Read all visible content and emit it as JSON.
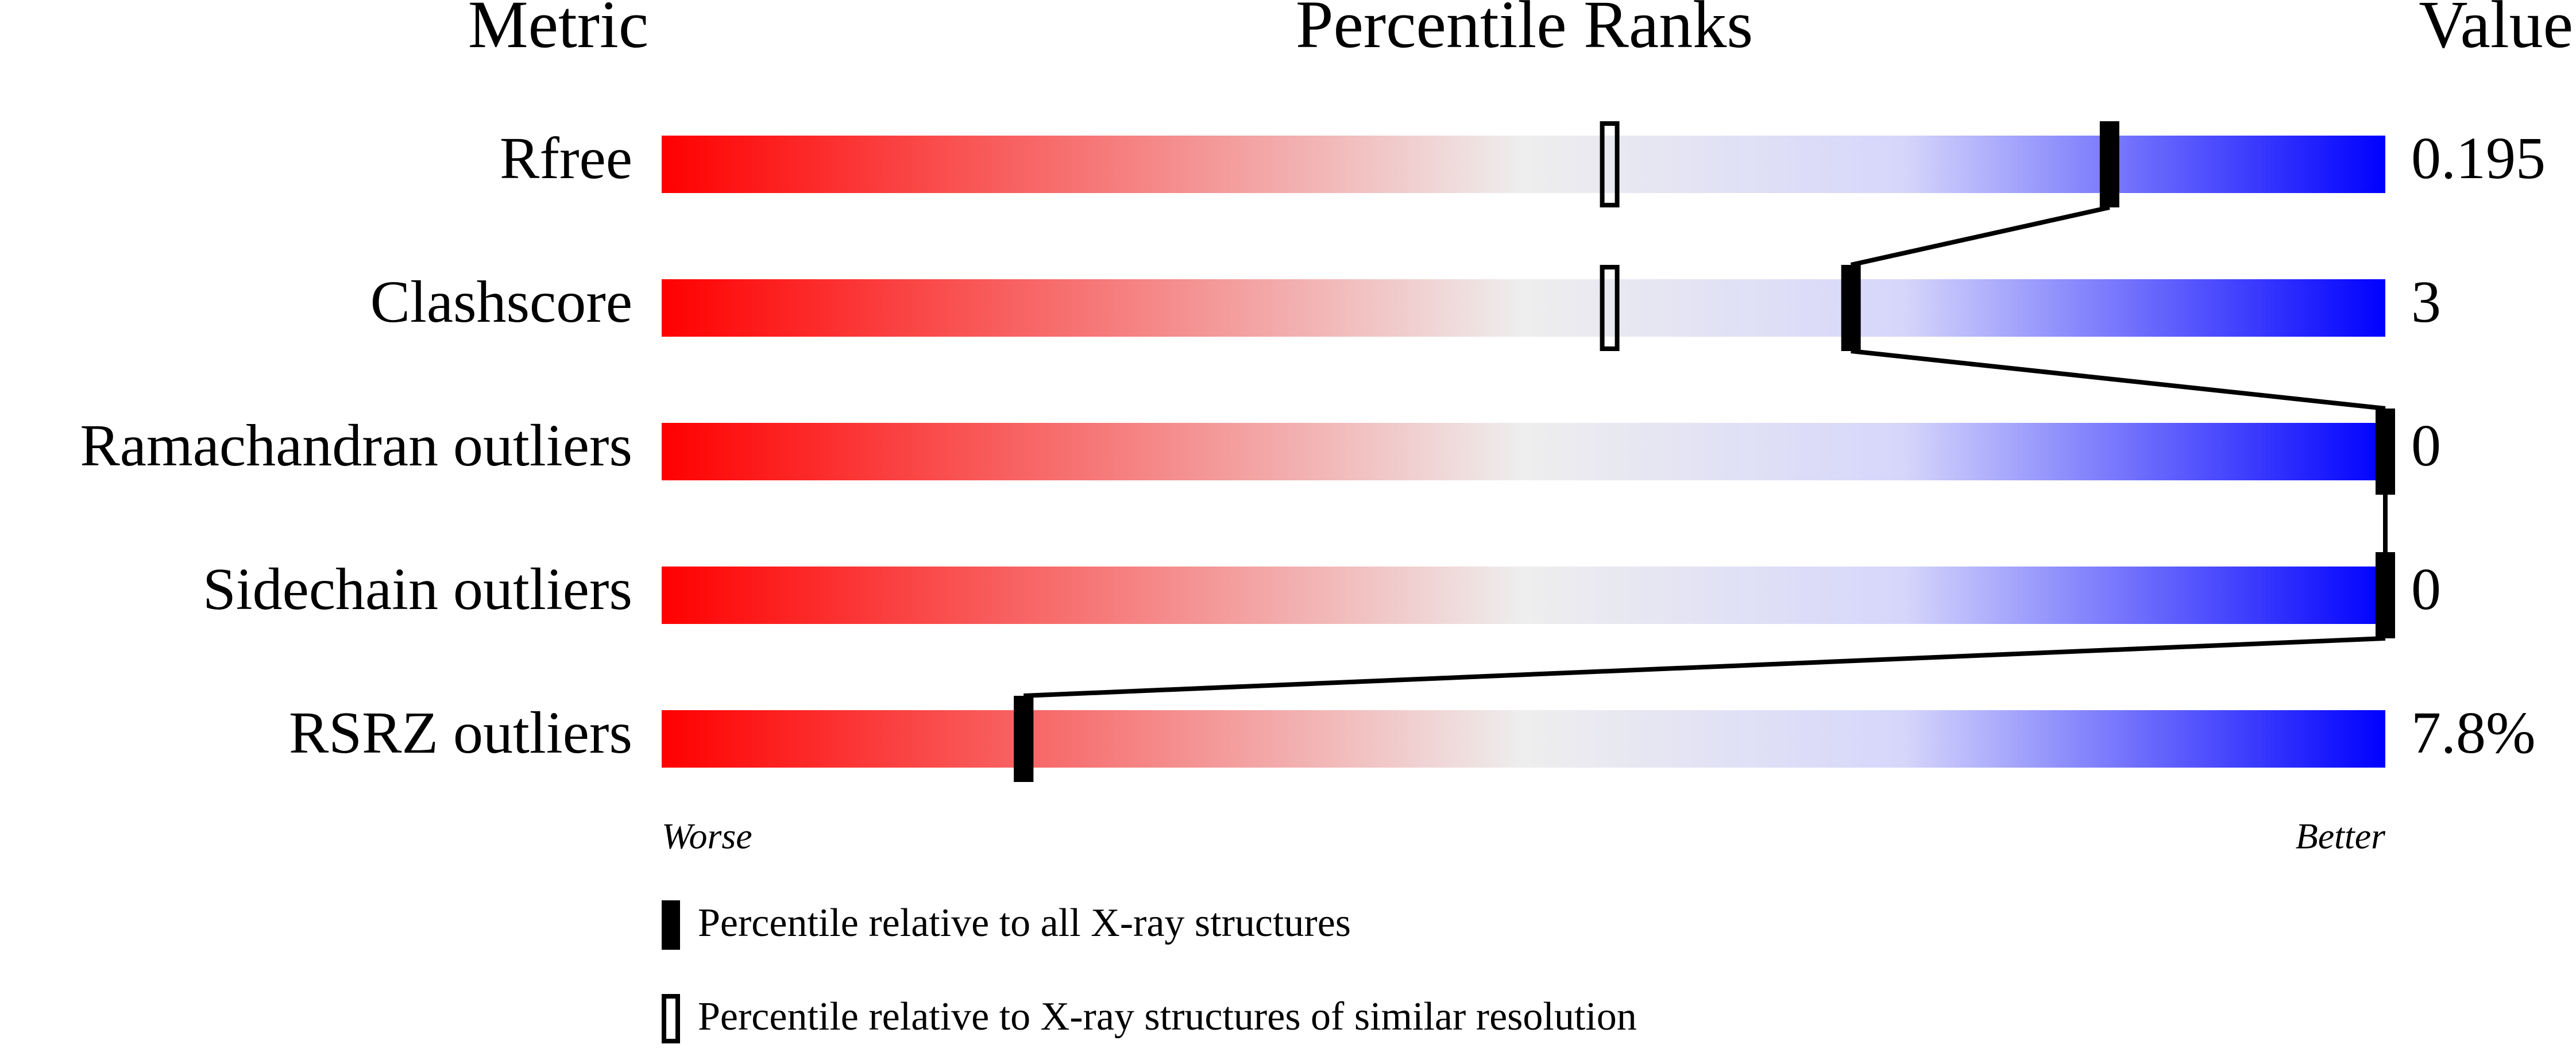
{
  "chart_data": {
    "type": "percentile-slider",
    "headers": [
      "Metric",
      "Percentile Ranks",
      "Value"
    ],
    "categories": [
      "Rfree",
      "Clashscore",
      "Ramachandran outliers",
      "Sidechain outliers",
      "RSRZ outliers"
    ],
    "value_column": [
      "0.195",
      "3",
      "0",
      "0",
      "7.8%"
    ],
    "xlim": [
      0,
      100
    ],
    "axis_ends": [
      "Worse",
      "Better"
    ],
    "series": [
      {
        "name": "Percentile relative to all X-ray structures",
        "color": "#000000",
        "style": "filled",
        "values": [
          84,
          69,
          100,
          100,
          21
        ]
      },
      {
        "name": "Percentile relative to X-ray structures of similar resolution",
        "color": "#000000",
        "style": "open",
        "values": [
          55,
          55,
          100,
          100,
          21
        ]
      }
    ],
    "gradient": [
      "#ff0000",
      "#eeeeee",
      "#d6d6fb",
      "#0000ff"
    ]
  }
}
